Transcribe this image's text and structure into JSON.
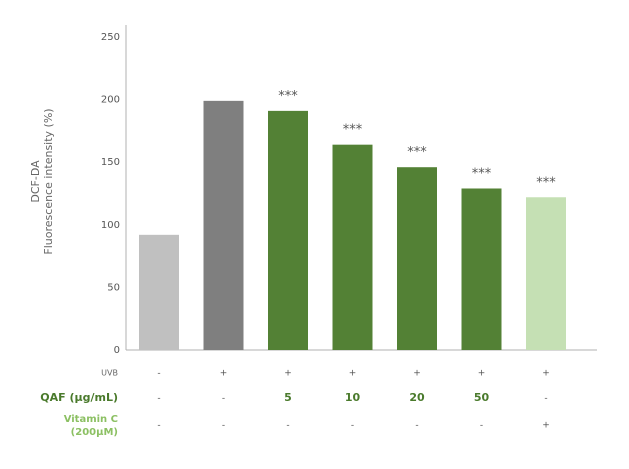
{
  "chart_data": {
    "type": "bar",
    "title": "",
    "ylabel_lines": [
      "DCF-DA",
      "Fluorescence intensity (%)"
    ],
    "ylim": [
      0,
      250
    ],
    "yticks": [
      "0",
      "50",
      "100",
      "150",
      "200",
      "250"
    ],
    "values": [
      92,
      199,
      191,
      164,
      146,
      129,
      122
    ],
    "significance": [
      "",
      "",
      "***",
      "***",
      "***",
      "***",
      "***"
    ],
    "colors": [
      "#c0c0c0",
      "#7f7f7f",
      "#538135",
      "#538135",
      "#538135",
      "#538135",
      "#c5e0b4"
    ],
    "grid": false,
    "treatment_rows": [
      {
        "label": "UVB",
        "style": "uvb",
        "cells": [
          "-",
          "+",
          "+",
          "+",
          "+",
          "+",
          "+"
        ]
      },
      {
        "label": "QAF (μg/mL)",
        "style": "qaf",
        "cells": [
          "-",
          "-",
          "5",
          "10",
          "20",
          "50",
          "-"
        ]
      },
      {
        "label_lines": [
          "Vitamin C",
          "(200μM)"
        ],
        "style": "vitc",
        "cells": [
          "-",
          "-",
          "-",
          "-",
          "-",
          "-",
          "+"
        ]
      }
    ]
  }
}
